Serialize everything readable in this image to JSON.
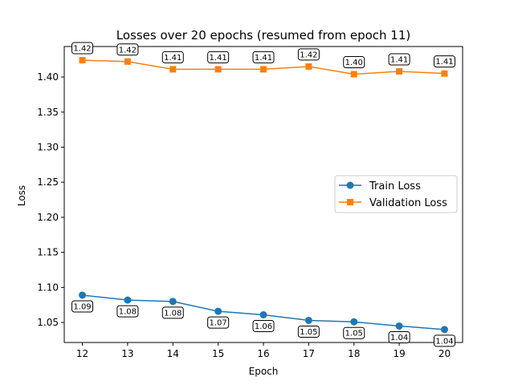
{
  "chart_data": {
    "type": "line",
    "title": "Losses over 20 epochs (resumed from epoch 11)",
    "xlabel": "Epoch",
    "ylabel": "Loss",
    "x": [
      12,
      13,
      14,
      15,
      16,
      17,
      18,
      19,
      20
    ],
    "xlim": [
      11.6,
      20.4
    ],
    "ylim": [
      1.0215,
      1.4435
    ],
    "x_ticks": [
      "12",
      "13",
      "14",
      "15",
      "16",
      "17",
      "18",
      "19",
      "20"
    ],
    "y_ticks": [
      1.05,
      1.1,
      1.15,
      1.2,
      1.25,
      1.3,
      1.35,
      1.4
    ],
    "y_tick_labels": [
      "1.05",
      "1.10",
      "1.15",
      "1.20",
      "1.25",
      "1.30",
      "1.35",
      "1.40"
    ],
    "grid": false,
    "legend_position": "center-right",
    "series": [
      {
        "name": "Train Loss",
        "color": "#1f77b4",
        "marker": "circle",
        "label_position": "below",
        "values": [
          1.089,
          1.082,
          1.08,
          1.066,
          1.061,
          1.053,
          1.051,
          1.045,
          1.04
        ],
        "data_labels": [
          "1.09",
          "1.08",
          "1.08",
          "1.07",
          "1.06",
          "1.05",
          "1.05",
          "1.04",
          "1.04"
        ]
      },
      {
        "name": "Validation Loss",
        "color": "#ff7f0e",
        "marker": "square",
        "label_position": "above",
        "values": [
          1.424,
          1.422,
          1.411,
          1.411,
          1.411,
          1.415,
          1.404,
          1.408,
          1.405
        ],
        "data_labels": [
          "1.42",
          "1.42",
          "1.41",
          "1.41",
          "1.41",
          "1.42",
          "1.40",
          "1.41",
          "1.41"
        ]
      }
    ]
  }
}
